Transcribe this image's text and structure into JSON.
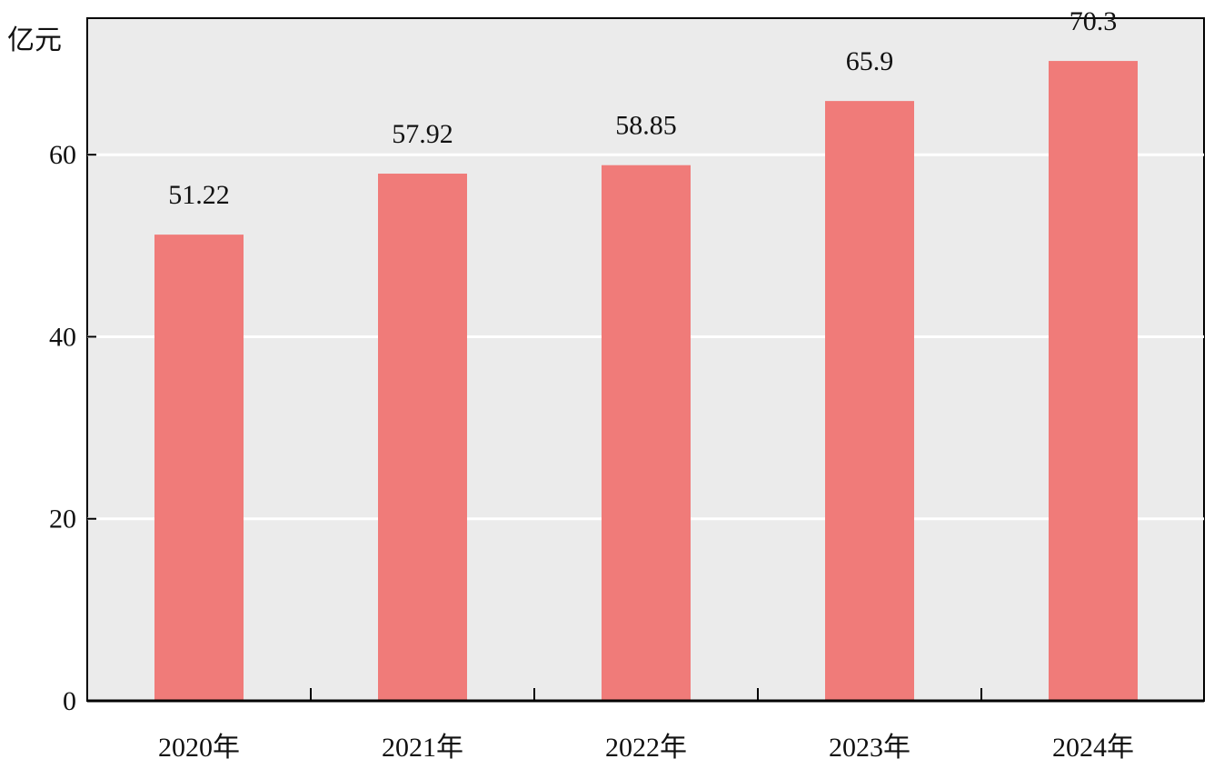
{
  "chart_data": {
    "type": "bar",
    "ylabel": "亿元",
    "categories": [
      "2020年",
      "2021年",
      "2022年",
      "2023年",
      "2024年"
    ],
    "values": [
      51.22,
      57.92,
      58.85,
      65.9,
      70.3
    ],
    "value_labels": [
      "51.22",
      "57.92",
      "58.85",
      "65.9",
      "70.3"
    ],
    "y_ticks": [
      0,
      20,
      40,
      60
    ],
    "ylim": [
      0,
      75
    ],
    "grid": true,
    "legend": "none",
    "colors": {
      "bar": "#f07b79",
      "plot_background": "#ebebeb",
      "grid": "#ffffff",
      "axis": "#000000"
    }
  }
}
